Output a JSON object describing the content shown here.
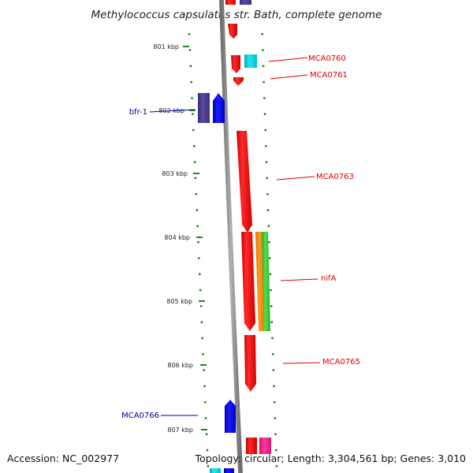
{
  "title": "Methylococcus capsulatus str. Bath, complete genome",
  "accession": "Accession: NC_002977",
  "topology": "Topology: circular; Length: 3,304,561 bp; Genes: 3,010",
  "kbp_labels": [
    "801 kbp",
    "802 kbp",
    "803 kbp",
    "804 kbp",
    "805 kbp",
    "806 kbp",
    "807 kbp"
  ],
  "gene_labels": [
    {
      "text": "MCA0760",
      "color": "#dd0000",
      "side": "right"
    },
    {
      "text": "MCA0761",
      "color": "#dd0000",
      "side": "right"
    },
    {
      "text": "bfr-1",
      "color": "#000099",
      "side": "left"
    },
    {
      "text": "MCA0763",
      "color": "#dd0000",
      "side": "right"
    },
    {
      "text": "nifA",
      "color": "#dd0000",
      "side": "right"
    },
    {
      "text": "MCA0765",
      "color": "#dd0000",
      "side": "right"
    },
    {
      "text": "MCA0766",
      "color": "#000099",
      "side": "left"
    }
  ],
  "colors": {
    "backbone": "#8c8c8c",
    "ticks": "#1a8a1a",
    "red": "#ee0000",
    "blue": "#0000ee",
    "purple": "#4b3b8f",
    "cyan": "#00ccdd",
    "orange": "#ff8800",
    "green": "#33cc33",
    "pink": "#ee2288",
    "label_red": "#dd0000",
    "label_blue": "#000099"
  }
}
